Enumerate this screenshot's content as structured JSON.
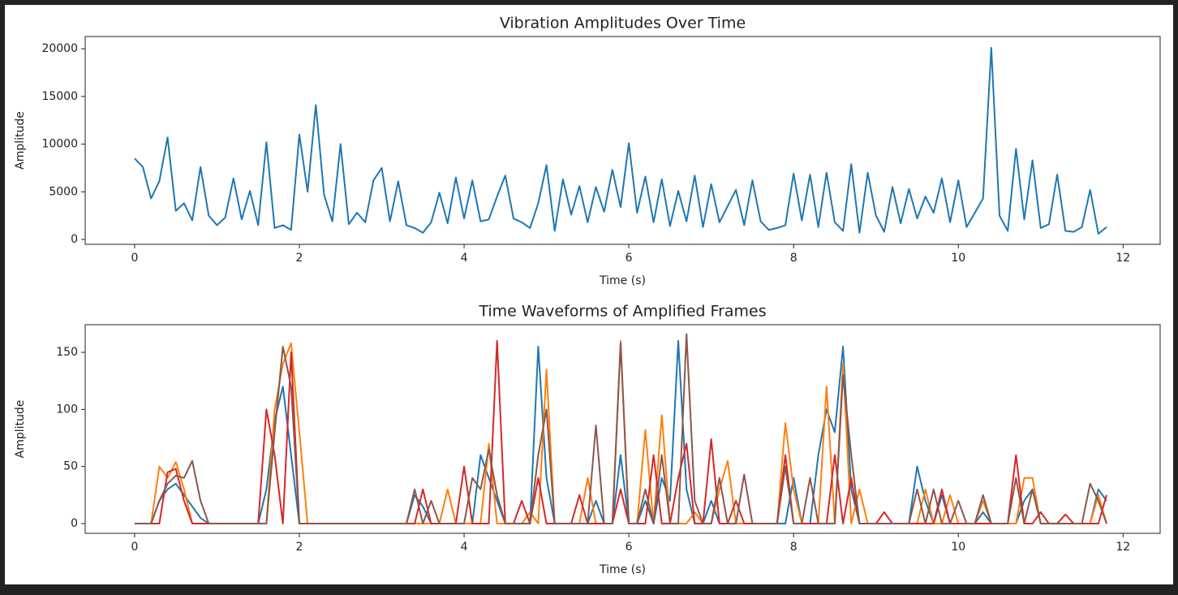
{
  "chart_data": [
    {
      "type": "line",
      "title": "Vibration Amplitudes Over Time",
      "x_label": "Time (s)",
      "y_label": "Amplitude",
      "xlim": [
        -0.6,
        12.45
      ],
      "ylim": [
        -510,
        21280
      ],
      "xticks": [
        0,
        2,
        4,
        6,
        8,
        10,
        12
      ],
      "yticks": [
        0,
        5000,
        10000,
        15000,
        20000
      ],
      "x": [
        0,
        0.1,
        0.2,
        0.3,
        0.4,
        0.5,
        0.6,
        0.7,
        0.8,
        0.9,
        1,
        1.1,
        1.2,
        1.3,
        1.4,
        1.5,
        1.6,
        1.7,
        1.8,
        1.9,
        2,
        2.1,
        2.2,
        2.3,
        2.4,
        2.5,
        2.6,
        2.7,
        2.8,
        2.9,
        3,
        3.1,
        3.2,
        3.3,
        3.4,
        3.5,
        3.6,
        3.7,
        3.8,
        3.9,
        4,
        4.1,
        4.2,
        4.3,
        4.4,
        4.5,
        4.6,
        4.7,
        4.8,
        4.9,
        5,
        5.1,
        5.2,
        5.3,
        5.4,
        5.5,
        5.6,
        5.7,
        5.8,
        5.9,
        6,
        6.1,
        6.2,
        6.3,
        6.4,
        6.5,
        6.6,
        6.7,
        6.8,
        6.9,
        7,
        7.1,
        7.2,
        7.3,
        7.4,
        7.5,
        7.6,
        7.7,
        7.8,
        7.9,
        8,
        8.1,
        8.2,
        8.3,
        8.4,
        8.5,
        8.6,
        8.7,
        8.8,
        8.9,
        9,
        9.1,
        9.2,
        9.3,
        9.4,
        9.5,
        9.6,
        9.7,
        9.8,
        9.9,
        10,
        10.1,
        10.2,
        10.3,
        10.4,
        10.5,
        10.6,
        10.7,
        10.8,
        10.9,
        11,
        11.1,
        11.2,
        11.3,
        11.4,
        11.5,
        11.6,
        11.7,
        11.8
      ],
      "series": [
        {
          "color": "#1f77b4",
          "values": [
            8500,
            7600,
            4300,
            6100,
            10700,
            3000,
            3800,
            2000,
            7600,
            2500,
            1500,
            2300,
            6400,
            2100,
            5100,
            1500,
            10200,
            1200,
            1500,
            1000,
            11000,
            5000,
            14100,
            4700,
            1900,
            10000,
            1600,
            2800,
            1800,
            6200,
            7500,
            1900,
            6100,
            1500,
            1200,
            700,
            1800,
            4900,
            1700,
            6500,
            2200,
            6200,
            1900,
            2100,
            4500,
            6700,
            2200,
            1800,
            1200,
            3800,
            7800,
            900,
            6300,
            2600,
            5600,
            1800,
            5500,
            2900,
            7300,
            3400,
            10100,
            2800,
            6600,
            1800,
            6300,
            1400,
            5100,
            1900,
            6700,
            1300,
            5800,
            1800,
            3500,
            5200,
            1500,
            6200,
            1900,
            1000,
            1200,
            1500,
            6900,
            2000,
            6800,
            1300,
            7000,
            1800,
            900,
            7900,
            700,
            7000,
            2500,
            800,
            5500,
            1700,
            5300,
            2200,
            4500,
            2800,
            6400,
            1800,
            6200,
            1300,
            2800,
            4300,
            20100,
            2500,
            900,
            9500,
            2100,
            8300,
            1200,
            1600,
            6800,
            900,
            800,
            1300,
            5200,
            600,
            1300
          ]
        }
      ]
    },
    {
      "type": "line",
      "title": "Time Waveforms of Amplified Frames",
      "x_label": "Time (s)",
      "y_label": "Amplitude",
      "xlim": [
        -0.6,
        12.45
      ],
      "ylim": [
        -8.5,
        174.2
      ],
      "xticks": [
        0,
        2,
        4,
        6,
        8,
        10,
        12
      ],
      "yticks": [
        0,
        50,
        100,
        150
      ],
      "x": [
        0,
        0.1,
        0.2,
        0.3,
        0.4,
        0.5,
        0.6,
        0.7,
        0.8,
        0.9,
        1,
        1.1,
        1.2,
        1.3,
        1.4,
        1.5,
        1.6,
        1.7,
        1.8,
        1.9,
        2,
        2.1,
        2.2,
        2.3,
        2.4,
        2.5,
        2.6,
        2.7,
        2.8,
        2.9,
        3,
        3.1,
        3.2,
        3.3,
        3.4,
        3.5,
        3.6,
        3.7,
        3.8,
        3.9,
        4,
        4.1,
        4.2,
        4.3,
        4.4,
        4.5,
        4.6,
        4.7,
        4.8,
        4.9,
        5,
        5.1,
        5.2,
        5.3,
        5.4,
        5.5,
        5.6,
        5.7,
        5.8,
        5.9,
        6,
        6.1,
        6.2,
        6.3,
        6.4,
        6.5,
        6.6,
        6.7,
        6.8,
        6.9,
        7,
        7.1,
        7.2,
        7.3,
        7.4,
        7.5,
        7.6,
        7.7,
        7.8,
        7.9,
        8,
        8.1,
        8.2,
        8.3,
        8.4,
        8.5,
        8.6,
        8.7,
        8.8,
        8.9,
        9,
        9.1,
        9.2,
        9.3,
        9.4,
        9.5,
        9.6,
        9.7,
        9.8,
        9.9,
        10,
        10.1,
        10.2,
        10.3,
        10.4,
        10.5,
        10.6,
        10.7,
        10.8,
        10.9,
        11,
        11.1,
        11.2,
        11.3,
        11.4,
        11.5,
        11.6,
        11.7,
        11.8
      ],
      "series": [
        {
          "color": "#1f77b4",
          "values": [
            0,
            0,
            0,
            20,
            30,
            35,
            25,
            15,
            5,
            0,
            0,
            0,
            0,
            0,
            0,
            0,
            30,
            90,
            120,
            60,
            0,
            0,
            0,
            0,
            0,
            0,
            0,
            0,
            0,
            0,
            0,
            0,
            0,
            0,
            25,
            15,
            0,
            0,
            0,
            0,
            0,
            0,
            60,
            40,
            20,
            0,
            0,
            0,
            0,
            155,
            40,
            0,
            0,
            0,
            0,
            0,
            20,
            0,
            0,
            60,
            0,
            0,
            20,
            0,
            40,
            20,
            160,
            30,
            0,
            0,
            20,
            0,
            0,
            0,
            0,
            0,
            0,
            0,
            0,
            0,
            40,
            0,
            0,
            60,
            100,
            80,
            155,
            30,
            0,
            0,
            0,
            0,
            0,
            0,
            0,
            50,
            20,
            0,
            25,
            0,
            0,
            0,
            0,
            10,
            0,
            0,
            0,
            0,
            20,
            30,
            0,
            0,
            0,
            0,
            0,
            0,
            0,
            30,
            20
          ]
        },
        {
          "color": "#ff7f0e",
          "values": [
            0,
            0,
            0,
            50,
            40,
            54,
            30,
            0,
            0,
            0,
            0,
            0,
            0,
            0,
            0,
            0,
            0,
            100,
            140,
            158,
            80,
            0,
            0,
            0,
            0,
            0,
            0,
            0,
            0,
            0,
            0,
            0,
            0,
            0,
            0,
            0,
            0,
            0,
            30,
            0,
            0,
            0,
            0,
            70,
            0,
            0,
            0,
            0,
            10,
            0,
            135,
            0,
            0,
            0,
            0,
            40,
            0,
            0,
            0,
            160,
            0,
            0,
            82,
            0,
            95,
            0,
            0,
            0,
            10,
            0,
            0,
            30,
            55,
            0,
            0,
            0,
            0,
            0,
            0,
            88,
            30,
            0,
            0,
            0,
            120,
            0,
            140,
            0,
            30,
            0,
            0,
            0,
            0,
            0,
            0,
            0,
            30,
            0,
            0,
            25,
            0,
            0,
            0,
            20,
            0,
            0,
            0,
            0,
            40,
            40,
            0,
            0,
            0,
            0,
            0,
            0,
            0,
            25,
            0
          ]
        },
        {
          "color": "#d62728",
          "values": [
            0,
            0,
            0,
            0,
            45,
            48,
            20,
            0,
            0,
            0,
            0,
            0,
            0,
            0,
            0,
            0,
            100,
            60,
            0,
            150,
            0,
            0,
            0,
            0,
            0,
            0,
            0,
            0,
            0,
            0,
            0,
            0,
            0,
            0,
            0,
            30,
            0,
            0,
            0,
            0,
            50,
            0,
            0,
            0,
            160,
            0,
            0,
            20,
            0,
            40,
            0,
            0,
            0,
            0,
            25,
            0,
            0,
            0,
            0,
            30,
            0,
            0,
            0,
            60,
            0,
            0,
            40,
            70,
            0,
            0,
            74,
            0,
            0,
            20,
            0,
            0,
            0,
            0,
            0,
            60,
            0,
            0,
            0,
            0,
            0,
            60,
            0,
            40,
            0,
            0,
            0,
            10,
            0,
            0,
            0,
            0,
            0,
            0,
            30,
            0,
            0,
            0,
            0,
            0,
            0,
            0,
            0,
            60,
            0,
            0,
            10,
            0,
            0,
            8,
            0,
            0,
            0,
            0,
            25
          ]
        },
        {
          "color": "#8c564b",
          "values": [
            0,
            0,
            0,
            20,
            35,
            42,
            40,
            55,
            20,
            0,
            0,
            0,
            0,
            0,
            0,
            0,
            0,
            80,
            155,
            120,
            0,
            0,
            0,
            0,
            0,
            0,
            0,
            0,
            0,
            0,
            0,
            0,
            0,
            0,
            30,
            0,
            20,
            0,
            0,
            0,
            0,
            40,
            30,
            65,
            25,
            0,
            0,
            0,
            0,
            60,
            100,
            0,
            0,
            0,
            0,
            0,
            86,
            0,
            0,
            158,
            0,
            0,
            30,
            0,
            60,
            0,
            0,
            166,
            20,
            0,
            0,
            40,
            0,
            0,
            43,
            0,
            0,
            0,
            0,
            50,
            0,
            0,
            40,
            0,
            0,
            0,
            130,
            60,
            0,
            0,
            0,
            0,
            0,
            0,
            0,
            30,
            0,
            30,
            0,
            0,
            20,
            0,
            0,
            25,
            0,
            0,
            0,
            40,
            0,
            30,
            0,
            0,
            0,
            0,
            0,
            0,
            35,
            20,
            0
          ]
        }
      ]
    }
  ]
}
